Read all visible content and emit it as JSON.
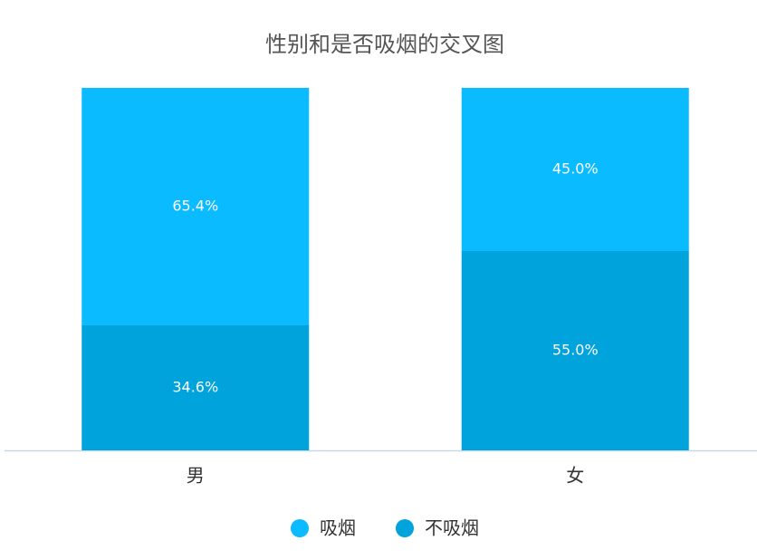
{
  "chart_data": {
    "type": "stacked_bar",
    "title": "性别和是否吸烟的交叉图",
    "categories": [
      "男",
      "女"
    ],
    "series": [
      {
        "name": "吸烟",
        "color": "#0bbbff",
        "values": [
          65.4,
          45.0
        ],
        "value_labels": [
          "65.4%",
          "45.0%"
        ]
      },
      {
        "name": "不吸烟",
        "color": "#00a3dc",
        "values": [
          34.6,
          55.0
        ],
        "value_labels": [
          "34.6%",
          "55.0%"
        ]
      }
    ],
    "ylim": [
      0,
      100
    ]
  }
}
